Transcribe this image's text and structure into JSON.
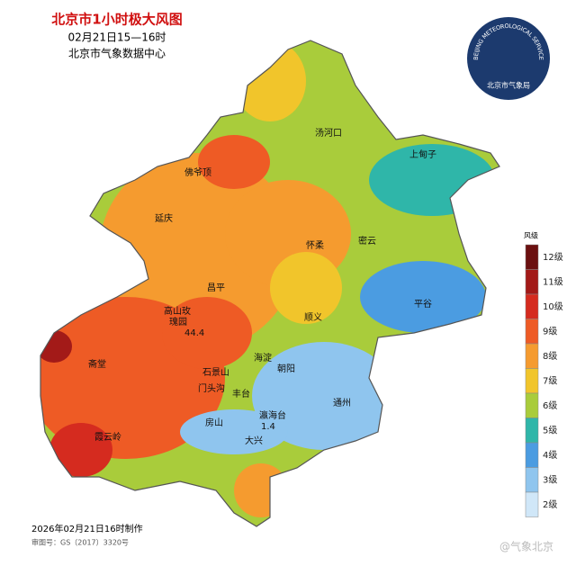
{
  "header": {
    "title": "北京市1小时极大风图",
    "time": "02月21日15—16时",
    "source": "北京市气象数据中心"
  },
  "logo": {
    "ring_text": "BEIJING METEOROLOGICAL SERVICE",
    "name": "北京市气象局"
  },
  "legend": {
    "title": "风级",
    "levels": [
      {
        "label": "12级",
        "color": "#6b1010"
      },
      {
        "label": "11级",
        "color": "#a31a18"
      },
      {
        "label": "10级",
        "color": "#d52b1f"
      },
      {
        "label": "9级",
        "color": "#ee5b25"
      },
      {
        "label": "8级",
        "color": "#f59b2f"
      },
      {
        "label": "7级",
        "color": "#f1c52b"
      },
      {
        "label": "6级",
        "color": "#a9cc3b"
      },
      {
        "label": "5级",
        "color": "#2fb6a9"
      },
      {
        "label": "4级",
        "color": "#4b9ce1"
      },
      {
        "label": "3级",
        "color": "#8fc5ee"
      },
      {
        "label": "2级",
        "color": "#d0e7f8"
      }
    ]
  },
  "places": [
    "汤河口",
    "上甸子",
    "佛爷顶",
    "延庆",
    "怀柔",
    "密云",
    "昌平",
    "平谷",
    "高山玫",
    "瑰园",
    "顺义",
    "海淀",
    "朝阳",
    "斋堂",
    "石景山",
    "门头沟",
    "丰台",
    "通州",
    "房山",
    "霞云岭",
    "大兴",
    "瀛海台"
  ],
  "extremes": {
    "max": 44.4,
    "min": 1.4
  },
  "footer": {
    "made": "2026年02月21日16时制作",
    "approval": "审图号：GS（2017）3320号",
    "watermark": "@气象北京"
  }
}
